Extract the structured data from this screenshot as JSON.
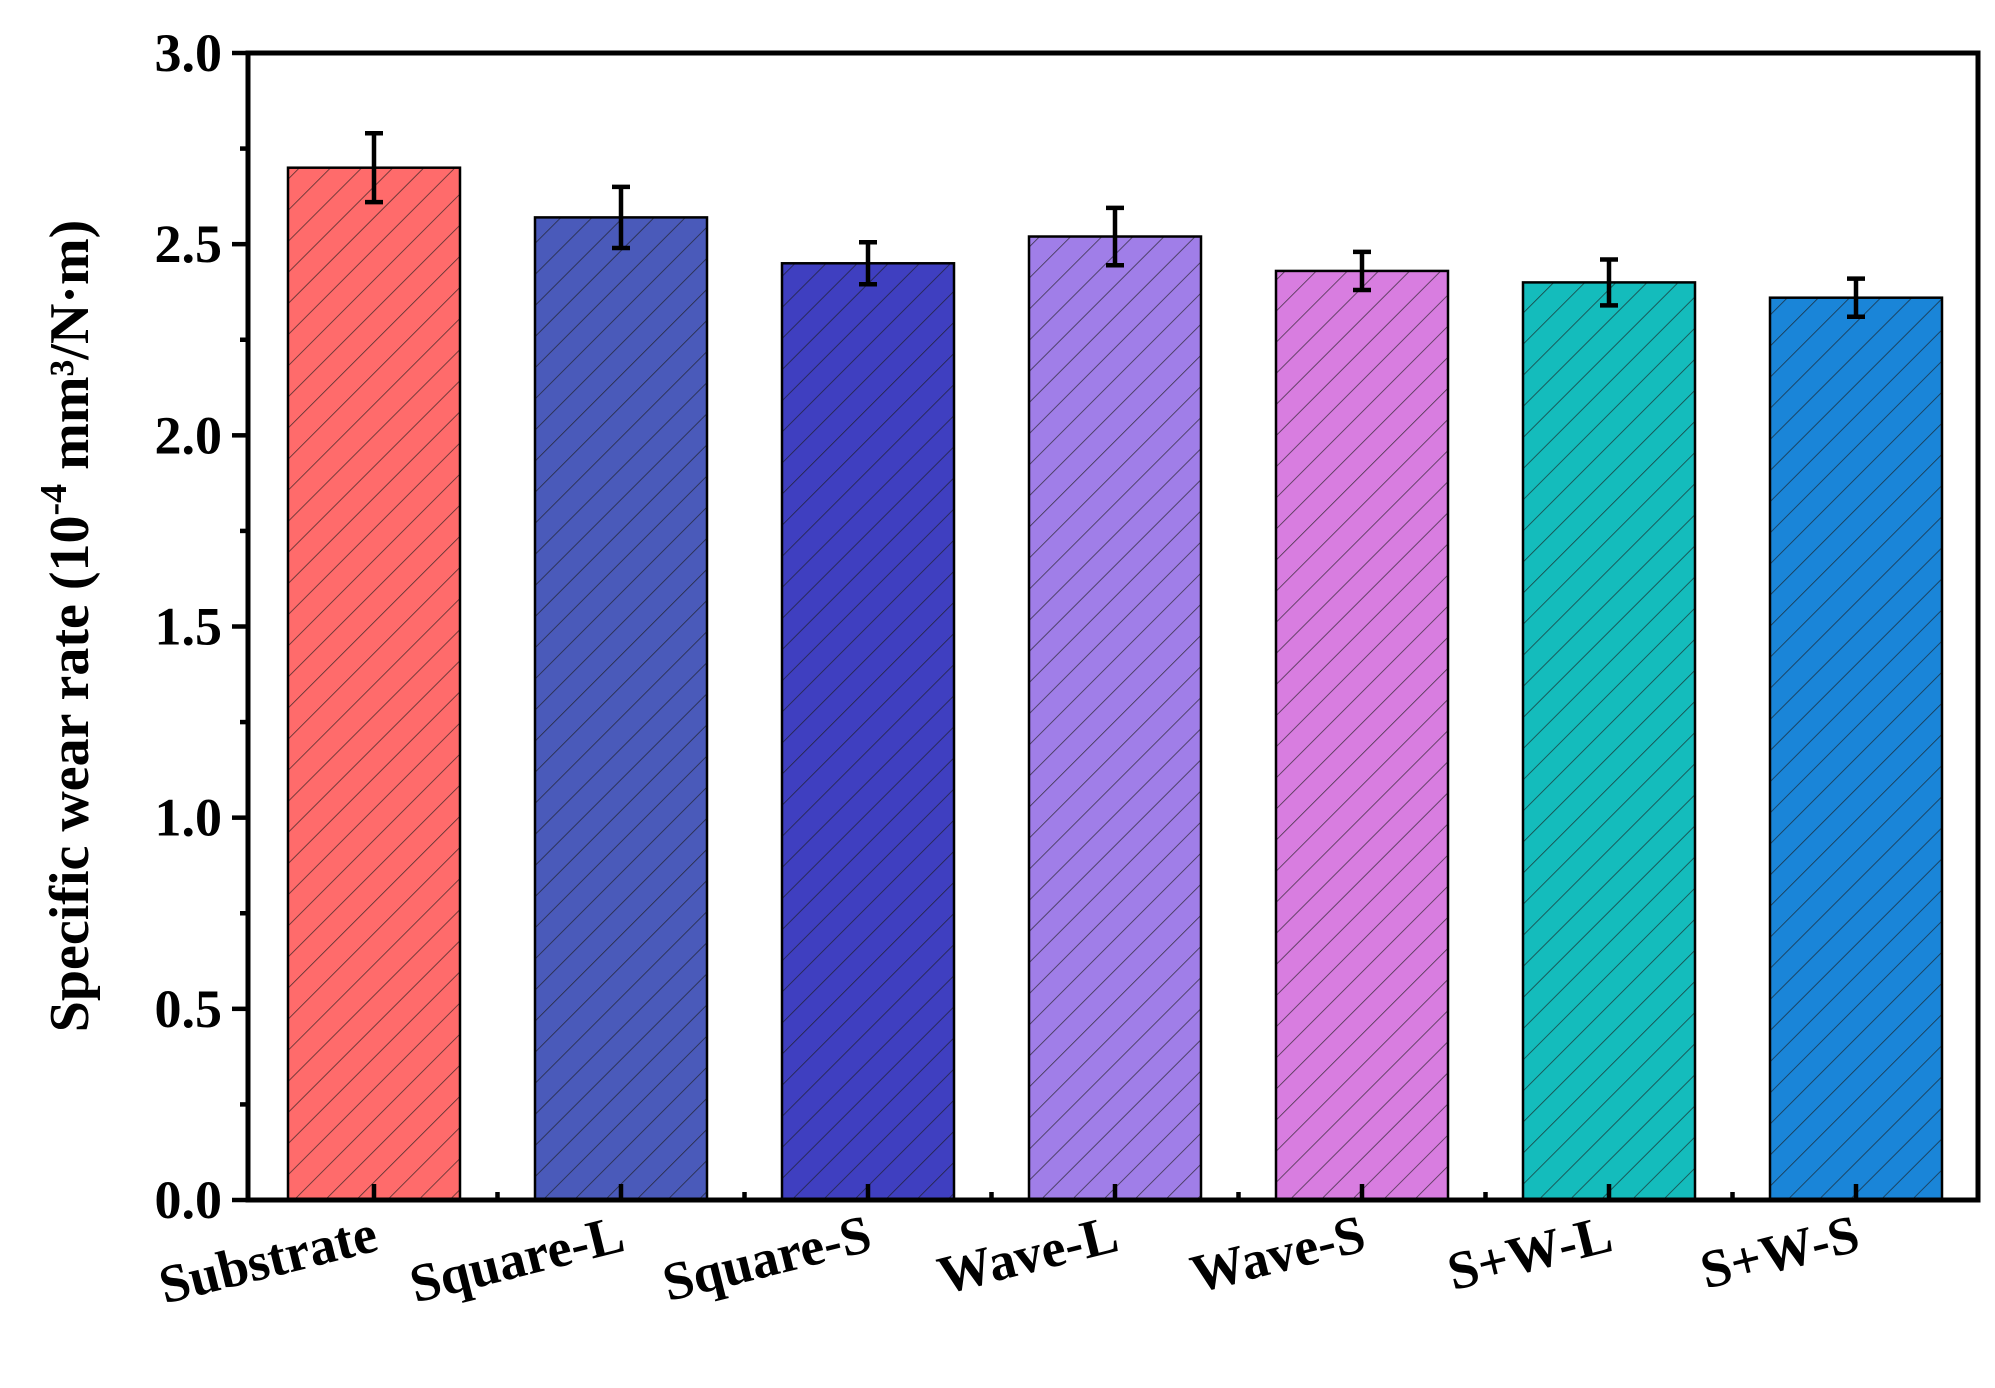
{
  "chart_data": {
    "type": "bar",
    "categories": [
      "Substrate",
      "Square-L",
      "Square-S",
      "Wave-L",
      "Wave-S",
      "S+W-L",
      "S+W-S"
    ],
    "values": [
      2.7,
      2.57,
      2.45,
      2.52,
      2.43,
      2.4,
      2.36
    ],
    "errors": [
      0.09,
      0.08,
      0.055,
      0.075,
      0.05,
      0.06,
      0.05
    ],
    "colors": [
      "#ff6b6b",
      "#4a5aba",
      "#3f3fc0",
      "#a07ee8",
      "#d87de0",
      "#14bcbc",
      "#1a85d8"
    ],
    "ylim": [
      0,
      3.0
    ],
    "yticks": [
      "0.0",
      "0.5",
      "1.0",
      "1.5",
      "2.0",
      "2.5",
      "3.0"
    ],
    "ylabel": {
      "main": "Specific wear rate (10",
      "sup": "-4",
      "tail": " mm³/N·m)"
    },
    "xlabel": "",
    "title": "",
    "grid": false,
    "pattern": "diagonal-hatch"
  }
}
